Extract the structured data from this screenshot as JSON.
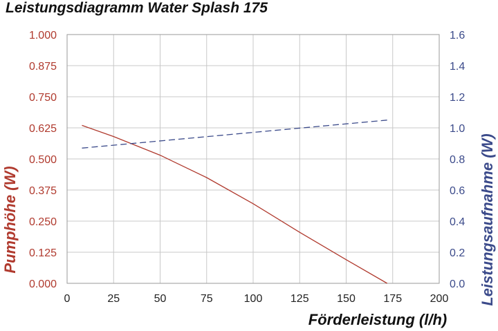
{
  "chart_data": {
    "type": "line",
    "title": "Leistungsdiagramm Water Splash 175",
    "xlabel": "Förderleistung (l/h)",
    "ylabel": "Pumphöhe (W)",
    "y2label": "Leistungsaufnahme (W)",
    "xlim": [
      0,
      200
    ],
    "ylim": [
      0,
      1.0
    ],
    "y2lim": [
      0,
      1.6
    ],
    "x_ticks": [
      "0",
      "25",
      "50",
      "75",
      "100",
      "125",
      "150",
      "175",
      "200"
    ],
    "y_ticks": [
      "0.000",
      "0.125",
      "0.250",
      "0.375",
      "0.500",
      "0.625",
      "0.750",
      "0.875",
      "1.000"
    ],
    "y2_ticks": [
      "0.0",
      "0.2",
      "0.4",
      "0.6",
      "0.8",
      "1.0",
      "1.2",
      "1.4",
      "1.6"
    ],
    "grid": true,
    "series": [
      {
        "name": "Pumphöhe",
        "axis": "left",
        "color": "#b03a2e",
        "style": "solid",
        "x": [
          8,
          25,
          50,
          75,
          100,
          125,
          150,
          172
        ],
        "y": [
          0.635,
          0.59,
          0.515,
          0.425,
          0.32,
          0.205,
          0.095,
          0.0
        ]
      },
      {
        "name": "Leistungsaufnahme",
        "axis": "right",
        "color": "#3b4a8a",
        "style": "dashed",
        "x": [
          8,
          172
        ],
        "y": [
          0.87,
          1.05
        ]
      }
    ]
  }
}
